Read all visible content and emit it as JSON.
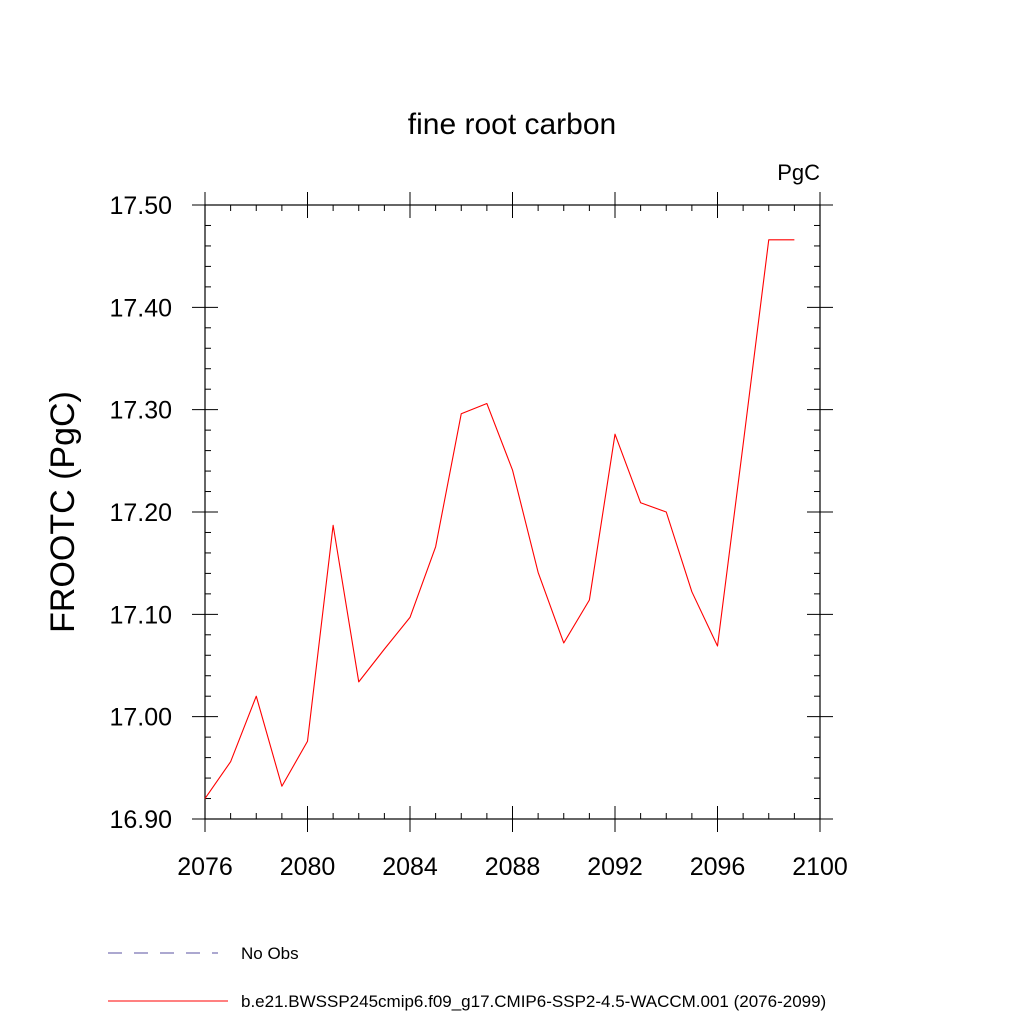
{
  "chart_data": {
    "type": "line",
    "title": "fine root carbon",
    "units": "PgC",
    "ylabel": "FROOTC  (PgC)",
    "xlabel": "",
    "xlim": [
      2076,
      2100
    ],
    "ylim": [
      16.9,
      17.5
    ],
    "x_ticks": [
      2076,
      2080,
      2084,
      2088,
      2092,
      2096,
      2100
    ],
    "x_tick_labels": [
      "2076",
      "2080",
      "2084",
      "2088",
      "2092",
      "2096",
      "2100"
    ],
    "y_ticks": [
      16.9,
      17.0,
      17.1,
      17.2,
      17.3,
      17.4,
      17.5
    ],
    "y_tick_labels": [
      "16.90",
      "17.00",
      "17.10",
      "17.20",
      "17.30",
      "17.40",
      "17.50"
    ],
    "grid": false,
    "series": [
      {
        "name": "b.e21.BWSSP245cmip6.f09_g17.CMIP6-SSP2-4.5-WACCM.001 (2076-2099)",
        "color": "#ff0000",
        "style": "solid",
        "x": [
          2076,
          2077,
          2078,
          2079,
          2080,
          2081,
          2082,
          2083,
          2084,
          2085,
          2086,
          2087,
          2088,
          2089,
          2090,
          2091,
          2092,
          2093,
          2094,
          2095,
          2096,
          2097,
          2098,
          2099
        ],
        "y": [
          16.92,
          16.956,
          17.02,
          16.932,
          16.976,
          17.187,
          17.034,
          17.066,
          17.097,
          17.166,
          17.296,
          17.306,
          17.241,
          17.141,
          17.072,
          17.114,
          17.276,
          17.209,
          17.2,
          17.122,
          17.069,
          17.266,
          17.466,
          17.466
        ]
      }
    ],
    "legend": {
      "placement": "bottom",
      "entries": [
        {
          "label": "No Obs",
          "color": "#5a50a0",
          "style": "dashed"
        },
        {
          "label": "b.e21.BWSSP245cmip6.f09_g17.CMIP6-SSP2-4.5-WACCM.001 (2076-2099)",
          "color": "#ff0000",
          "style": "solid"
        }
      ]
    }
  }
}
